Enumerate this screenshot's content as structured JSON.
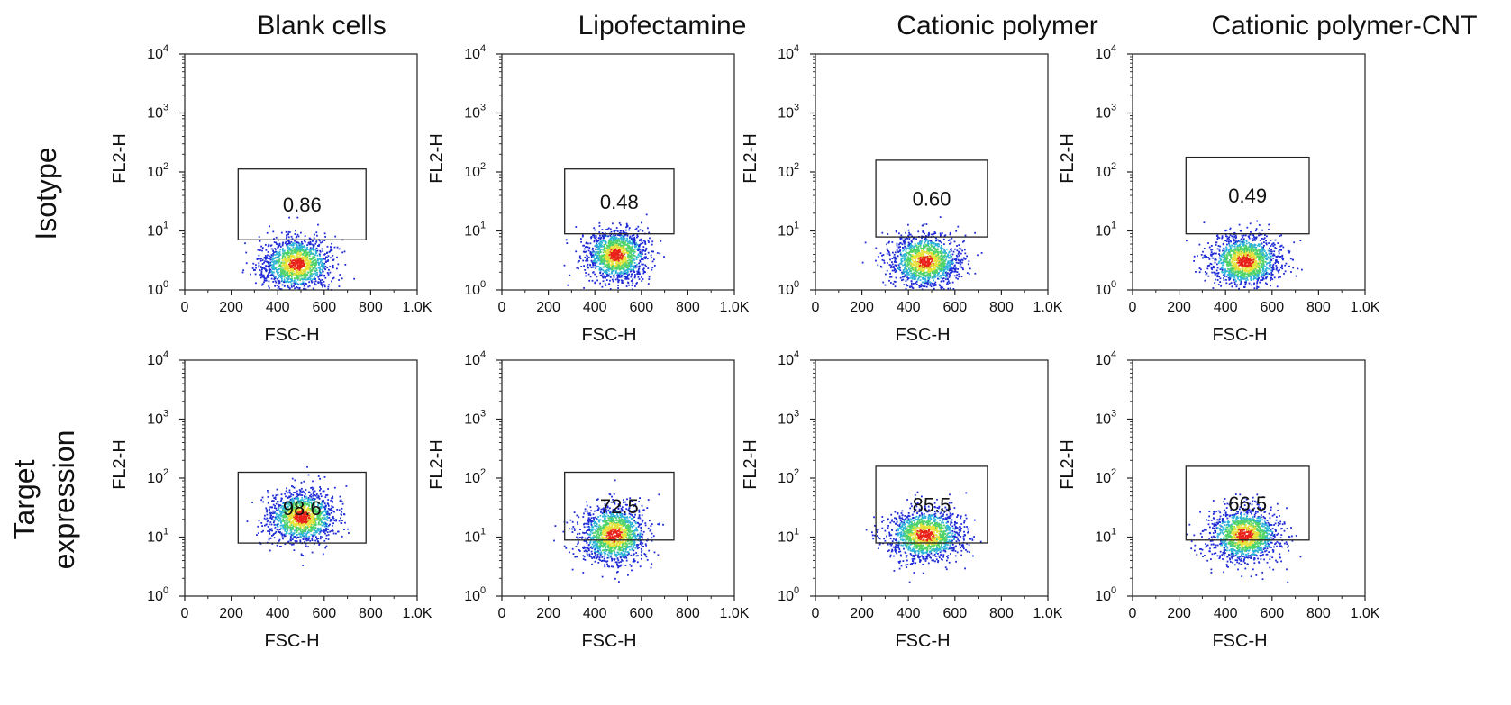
{
  "figure": {
    "column_titles": [
      "Blank cells",
      "Lipofectamine",
      "Cationic polymer",
      "Cationic polymer-CNT"
    ],
    "row_titles": [
      [
        "Isotype"
      ],
      [
        "Target",
        "expression"
      ]
    ]
  },
  "colors": {
    "density_low": "#1e2bd6",
    "density_mid_low": "#2fb3d8",
    "density_mid": "#4fd36a",
    "density_mid_high": "#e6e23a",
    "density_high": "#e8231a",
    "axis": "#222222",
    "gate": "#222222"
  },
  "chart_data": [
    {
      "type": "scatter",
      "row": 0,
      "col": 0,
      "xlabel": "FSC-H",
      "ylabel": "FL2-H",
      "x_ticks": [
        "0",
        "200",
        "400",
        "600",
        "800",
        "1.0K"
      ],
      "y_ticks": [
        "10",
        "10",
        "10",
        "10",
        "10"
      ],
      "y_tick_exponents": [
        "0",
        "1",
        "2",
        "3",
        "4"
      ],
      "xlim": [
        0,
        1000
      ],
      "ylog10_lim": [
        0,
        4
      ],
      "grid": false,
      "gate": {
        "x": [
          230,
          780
        ],
        "y_log10": [
          0.85,
          2.05
        ],
        "percent": "0.86"
      },
      "cloud": {
        "x_center": 480,
        "x_spread": 75,
        "y_log10_center": 0.45,
        "y_log10_spread": 0.22
      }
    },
    {
      "type": "scatter",
      "row": 0,
      "col": 1,
      "xlabel": "FSC-H",
      "ylabel": "FL2-H",
      "x_ticks": [
        "0",
        "200",
        "400",
        "600",
        "800",
        "1.0K"
      ],
      "y_ticks": [
        "10",
        "10",
        "10",
        "10",
        "10"
      ],
      "y_tick_exponents": [
        "0",
        "1",
        "2",
        "3",
        "4"
      ],
      "xlim": [
        0,
        1000
      ],
      "ylog10_lim": [
        0,
        4
      ],
      "grid": false,
      "gate": {
        "x": [
          270,
          740
        ],
        "y_log10": [
          0.95,
          2.05
        ],
        "percent": "0.48"
      },
      "cloud": {
        "x_center": 490,
        "x_spread": 65,
        "y_log10_center": 0.6,
        "y_log10_spread": 0.22
      }
    },
    {
      "type": "scatter",
      "row": 0,
      "col": 2,
      "xlabel": "FSC-H",
      "ylabel": "FL2-H",
      "x_ticks": [
        "0",
        "200",
        "400",
        "600",
        "800",
        "1.0K"
      ],
      "y_ticks": [
        "10",
        "10",
        "10",
        "10",
        "10"
      ],
      "y_tick_exponents": [
        "0",
        "1",
        "2",
        "3",
        "4"
      ],
      "xlim": [
        0,
        1000
      ],
      "ylog10_lim": [
        0,
        4
      ],
      "grid": false,
      "gate": {
        "x": [
          260,
          740
        ],
        "y_log10": [
          0.9,
          2.2
        ],
        "percent": "0.60"
      },
      "cloud": {
        "x_center": 470,
        "x_spread": 75,
        "y_log10_center": 0.5,
        "y_log10_spread": 0.23
      }
    },
    {
      "type": "scatter",
      "row": 0,
      "col": 3,
      "xlabel": "FSC-H",
      "ylabel": "FL2-H",
      "x_ticks": [
        "0",
        "200",
        "400",
        "600",
        "800",
        "1.0K"
      ],
      "y_ticks": [
        "10",
        "10",
        "10",
        "10",
        "10"
      ],
      "y_tick_exponents": [
        "0",
        "1",
        "2",
        "3",
        "4"
      ],
      "xlim": [
        0,
        1000
      ],
      "ylog10_lim": [
        0,
        4
      ],
      "grid": false,
      "gate": {
        "x": [
          230,
          760
        ],
        "y_log10": [
          0.95,
          2.25
        ],
        "percent": "0.49"
      },
      "cloud": {
        "x_center": 480,
        "x_spread": 75,
        "y_log10_center": 0.5,
        "y_log10_spread": 0.22
      }
    },
    {
      "type": "scatter",
      "row": 1,
      "col": 0,
      "xlabel": "FSC-H",
      "ylabel": "FL2-H",
      "x_ticks": [
        "0",
        "200",
        "400",
        "600",
        "800",
        "1.0K"
      ],
      "y_ticks": [
        "10",
        "10",
        "10",
        "10",
        "10"
      ],
      "y_tick_exponents": [
        "0",
        "1",
        "2",
        "3",
        "4"
      ],
      "xlim": [
        0,
        1000
      ],
      "ylog10_lim": [
        0,
        4
      ],
      "grid": false,
      "gate": {
        "x": [
          230,
          780
        ],
        "y_log10": [
          0.9,
          2.1
        ],
        "percent": "98.6"
      },
      "cloud": {
        "x_center": 500,
        "x_spread": 75,
        "y_log10_center": 1.35,
        "y_log10_spread": 0.22
      }
    },
    {
      "type": "scatter",
      "row": 1,
      "col": 1,
      "xlabel": "FSC-H",
      "ylabel": "FL2-H",
      "x_ticks": [
        "0",
        "200",
        "400",
        "600",
        "800",
        "1.0K"
      ],
      "y_ticks": [
        "10",
        "10",
        "10",
        "10",
        "10"
      ],
      "y_tick_exponents": [
        "0",
        "1",
        "2",
        "3",
        "4"
      ],
      "xlim": [
        0,
        1000
      ],
      "ylog10_lim": [
        0,
        4
      ],
      "grid": false,
      "gate": {
        "x": [
          270,
          740
        ],
        "y_log10": [
          0.95,
          2.1
        ],
        "percent": "72.5"
      },
      "cloud": {
        "x_center": 480,
        "x_spread": 70,
        "y_log10_center": 1.05,
        "y_log10_spread": 0.25
      }
    },
    {
      "type": "scatter",
      "row": 1,
      "col": 2,
      "xlabel": "FSC-H",
      "ylabel": "FL2-H",
      "x_ticks": [
        "0",
        "200",
        "400",
        "600",
        "800",
        "1.0K"
      ],
      "y_ticks": [
        "10",
        "10",
        "10",
        "10",
        "10"
      ],
      "y_tick_exponents": [
        "0",
        "1",
        "2",
        "3",
        "4"
      ],
      "xlim": [
        0,
        1000
      ],
      "ylog10_lim": [
        0,
        4
      ],
      "grid": false,
      "gate": {
        "x": [
          260,
          740
        ],
        "y_log10": [
          0.9,
          2.2
        ],
        "percent": "85.5"
      },
      "cloud": {
        "x_center": 470,
        "x_spread": 80,
        "y_log10_center": 1.05,
        "y_log10_spread": 0.22
      }
    },
    {
      "type": "scatter",
      "row": 1,
      "col": 3,
      "xlabel": "FSC-H",
      "ylabel": "FL2-H",
      "x_ticks": [
        "0",
        "200",
        "400",
        "600",
        "800",
        "1.0K"
      ],
      "y_ticks": [
        "10",
        "10",
        "10",
        "10",
        "10"
      ],
      "y_tick_exponents": [
        "0",
        "1",
        "2",
        "3",
        "4"
      ],
      "xlim": [
        0,
        1000
      ],
      "ylog10_lim": [
        0,
        4
      ],
      "grid": false,
      "gate": {
        "x": [
          230,
          760
        ],
        "y_log10": [
          0.95,
          2.2
        ],
        "percent": "66.5"
      },
      "cloud": {
        "x_center": 480,
        "x_spread": 75,
        "y_log10_center": 1.05,
        "y_log10_spread": 0.23
      }
    }
  ]
}
